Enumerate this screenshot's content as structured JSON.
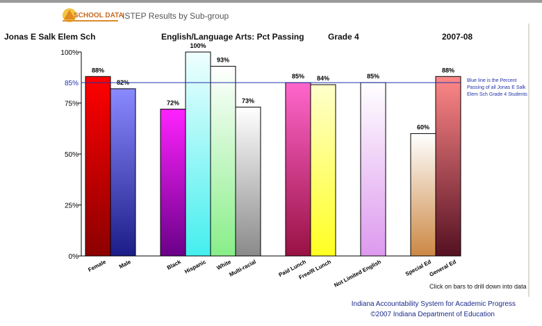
{
  "header": {
    "logo_text": "SCHOOL DATA",
    "title": "ISTEP Results by Sub-group"
  },
  "chart_header": {
    "school": "Jonas E Salk Elem Sch",
    "subject": "English/Language Arts:  Pct Passing",
    "grade": "Grade 4",
    "year": "2007-08"
  },
  "annotations": {
    "blue_line_note": "Blue line is the Percent Passing of all Jonas E Salk Elem Sch Grade 4 Students",
    "drill_note": "Click on bars to drill down into data"
  },
  "footer": {
    "line1": "Indiana Accountability System for Academic Progress",
    "line2": "©2007 Indiana Department of Education"
  },
  "chart_data": {
    "type": "bar",
    "ylim": [
      0,
      100
    ],
    "yticks": [
      {
        "value": 0,
        "label": "0%"
      },
      {
        "value": 25,
        "label": "25%"
      },
      {
        "value": 50,
        "label": "50%"
      },
      {
        "value": 75,
        "label": "75%"
      },
      {
        "value": 100,
        "label": "100%"
      }
    ],
    "reference_line": {
      "value": 85,
      "label": "85%",
      "color": "#2233aa"
    },
    "groups": [
      {
        "bars": [
          {
            "category": "Female",
            "value": 88,
            "label": "88%",
            "colors": [
              "#ff0000",
              "#8c0000"
            ]
          },
          {
            "category": "Male",
            "value": 82,
            "label": "82%",
            "colors": [
              "#8a8aff",
              "#1c1c88"
            ]
          }
        ]
      },
      {
        "bars": [
          {
            "category": "Black",
            "value": 72,
            "label": "72%",
            "colors": [
              "#ff22ff",
              "#6a0088"
            ]
          },
          {
            "category": "Hispanic",
            "value": 100,
            "label": "100%",
            "colors": [
              "#f0ffff",
              "#44eeee"
            ]
          },
          {
            "category": "White",
            "value": 93,
            "label": "93%",
            "colors": [
              "#ffffff",
              "#88ee88"
            ]
          },
          {
            "category": "Multi-racial",
            "value": 73,
            "label": "73%",
            "colors": [
              "#ffffff",
              "#8a8a8a"
            ]
          }
        ]
      },
      {
        "bars": [
          {
            "category": "Paid Lunch",
            "value": 85,
            "label": "85%",
            "colors": [
              "#ff66cc",
              "#991144"
            ]
          },
          {
            "category": "Free/R Lunch",
            "value": 84,
            "label": "84%",
            "colors": [
              "#ffffcc",
              "#ffff22"
            ]
          }
        ]
      },
      {
        "bars": [
          {
            "category": "Not Limited English",
            "value": 85,
            "label": "85%",
            "colors": [
              "#ffffff",
              "#dd99ee"
            ]
          }
        ]
      },
      {
        "bars": [
          {
            "category": "Special Ed",
            "value": 60,
            "label": "60%",
            "colors": [
              "#ffffff",
              "#cc8844"
            ]
          },
          {
            "category": "General Ed",
            "value": 88,
            "label": "88%",
            "colors": [
              "#ff8888",
              "#551122"
            ]
          }
        ]
      }
    ]
  }
}
